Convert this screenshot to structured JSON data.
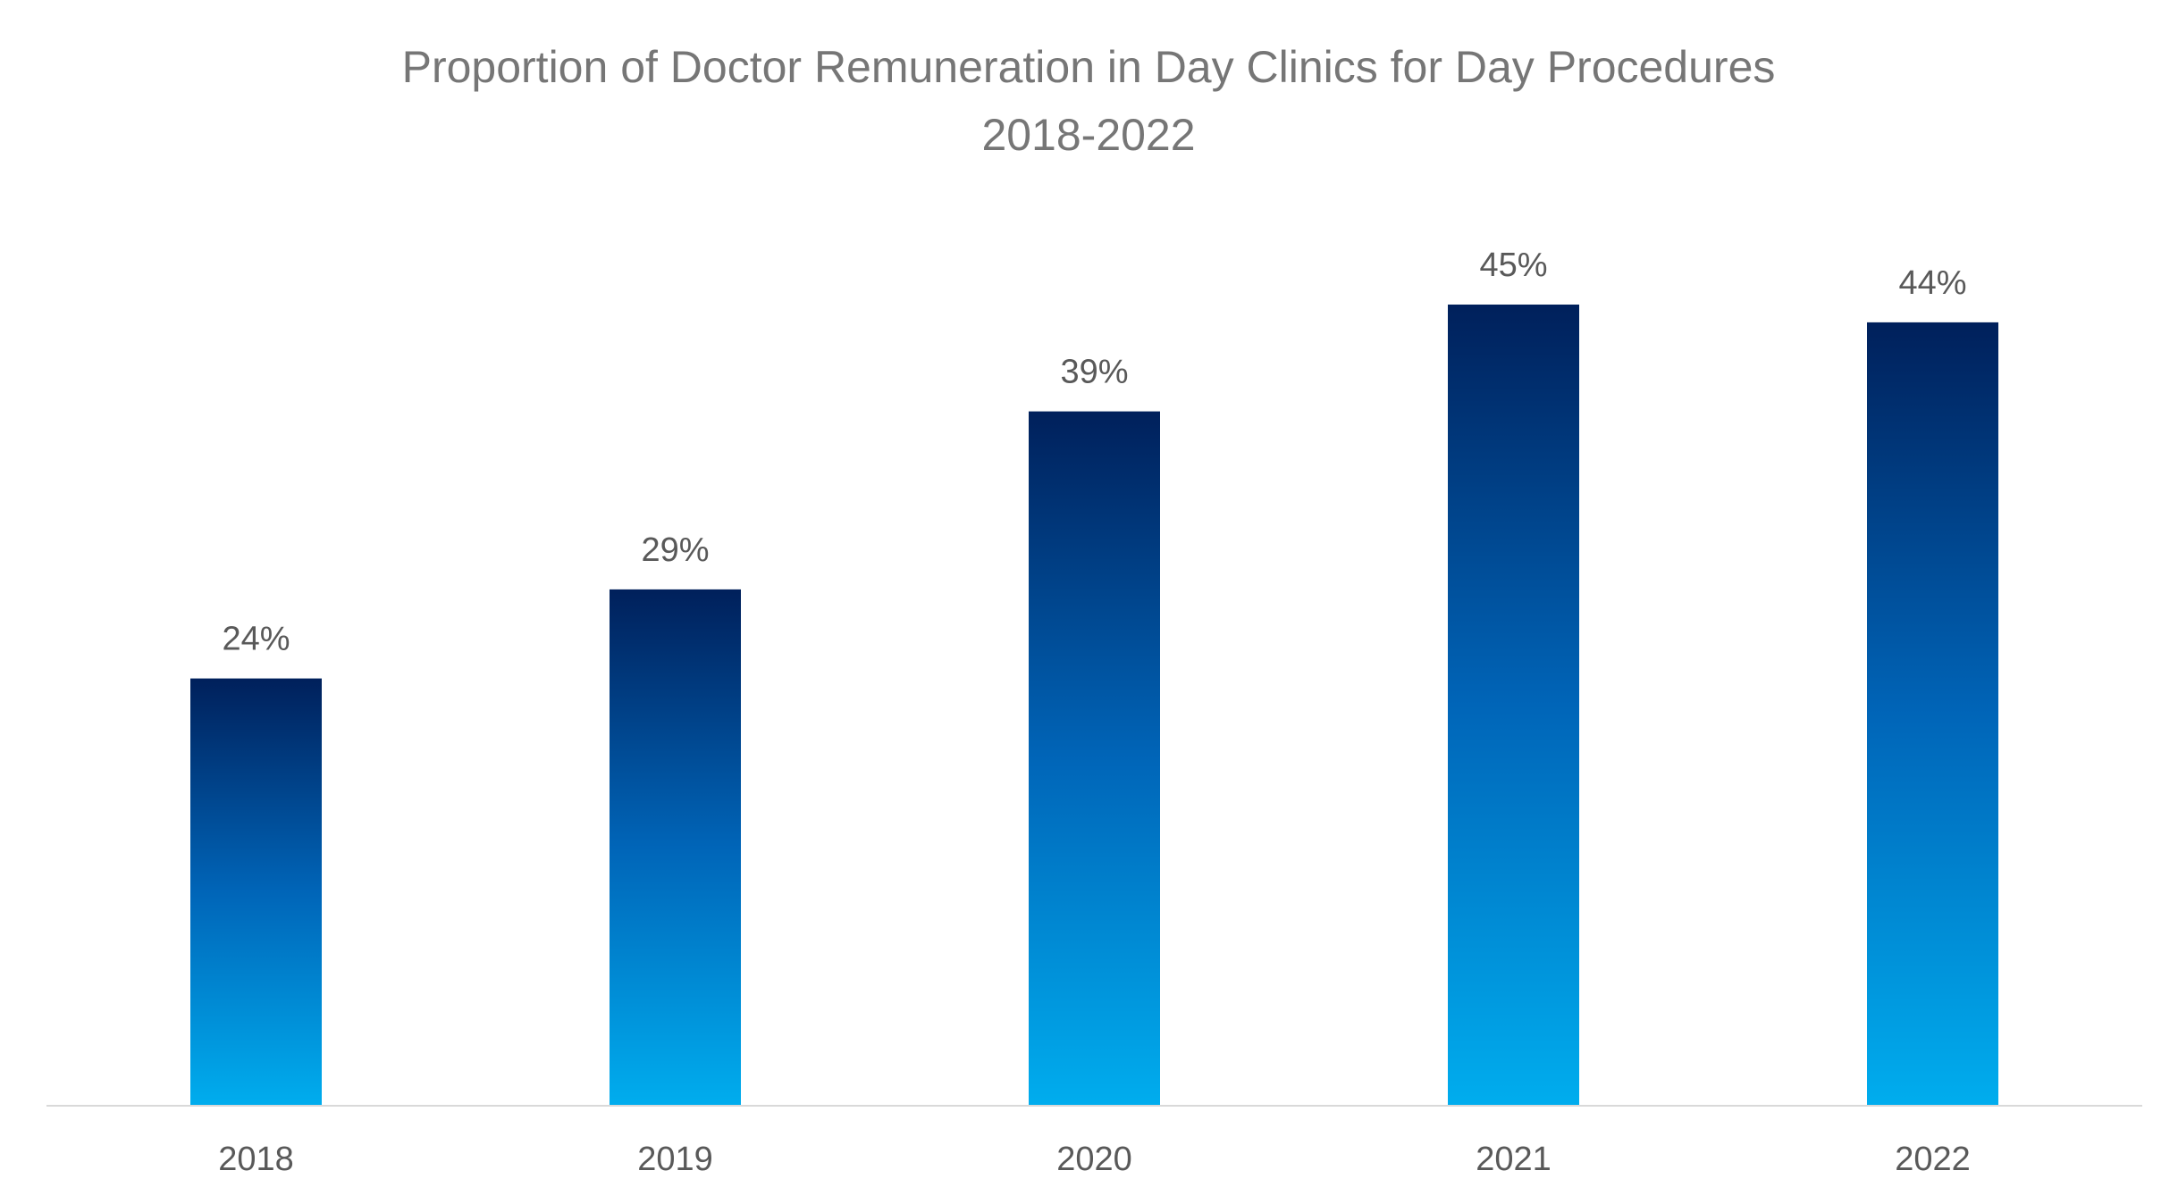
{
  "chart_data": {
    "type": "bar",
    "title": "Proportion of Doctor Remuneration in Day Clinics for Day Procedures",
    "subtitle": "2018-2022",
    "xlabel": "",
    "ylabel": "",
    "categories": [
      "2018",
      "2019",
      "2020",
      "2021",
      "2022"
    ],
    "values": [
      24,
      29,
      39,
      45,
      44
    ],
    "value_labels": [
      "24%",
      "29%",
      "39%",
      "45%",
      "44%"
    ],
    "ylim": [
      0,
      45
    ],
    "grid": false,
    "legend": "none",
    "colors": {
      "bar_top": "#00205B",
      "bar_mid": "#0065B8",
      "bar_bottom": "#00ADEE",
      "axis": "#D9D9D9",
      "title": "#767676",
      "labels": "#595959"
    }
  }
}
